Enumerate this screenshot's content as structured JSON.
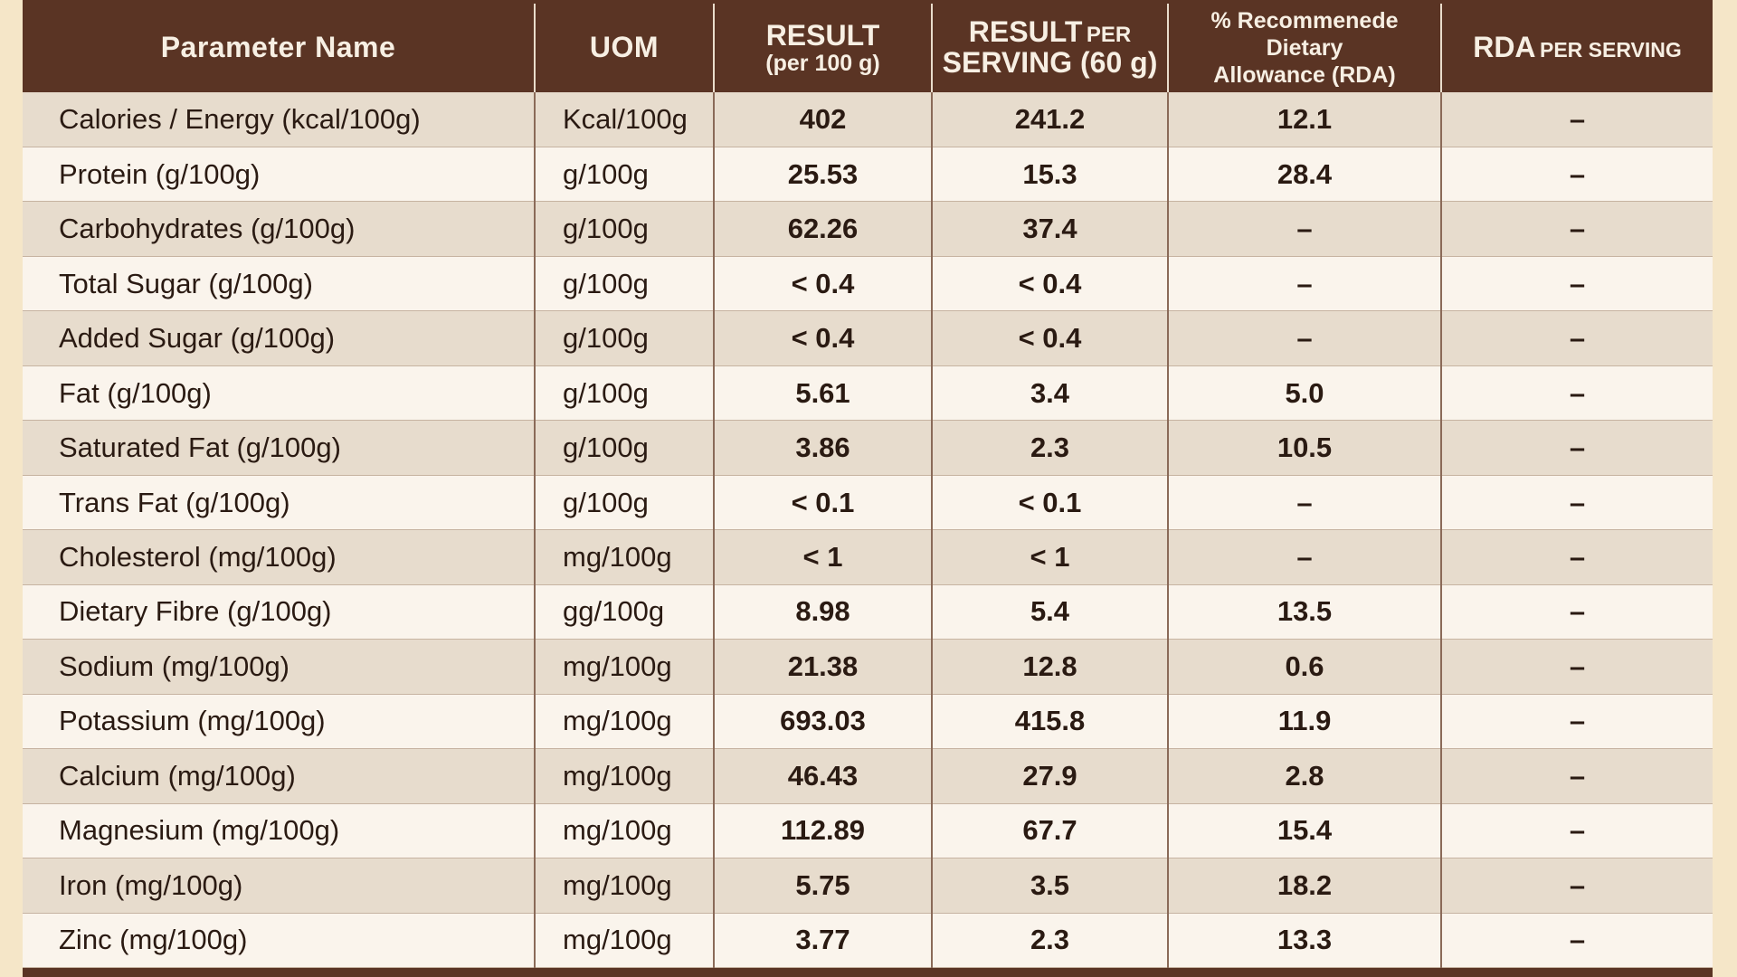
{
  "table": {
    "headers": {
      "parameter_name": "Parameter Name",
      "uom": "UOM",
      "result_title": "RESULT",
      "result_sub": "(per 100 g)",
      "serving_result": "RESULT",
      "serving_per": "PER",
      "serving_line2": "SERVING (60 g)",
      "rda_line1": "% Recommenede Dietary",
      "rda_line2": "Allowance (RDA)",
      "rda_per_main": "RDA",
      "rda_per_caps": "PER SERVING"
    },
    "rows": [
      {
        "name": "Calories / Energy (kcal/100g)",
        "uom": "Kcal/100g",
        "result": "402",
        "serving": "241.2",
        "rda": "12.1",
        "rda_serving": "–"
      },
      {
        "name": "Protein (g/100g)",
        "uom": "g/100g",
        "result": "25.53",
        "serving": "15.3",
        "rda": "28.4",
        "rda_serving": "–"
      },
      {
        "name": "Carbohydrates (g/100g)",
        "uom": "g/100g",
        "result": "62.26",
        "serving": "37.4",
        "rda": "–",
        "rda_serving": "–"
      },
      {
        "name": "Total Sugar (g/100g)",
        "uom": "g/100g",
        "result": "< 0.4",
        "serving": "< 0.4",
        "rda": "–",
        "rda_serving": "–"
      },
      {
        "name": "Added Sugar (g/100g)",
        "uom": "g/100g",
        "result": "< 0.4",
        "serving": "< 0.4",
        "rda": "–",
        "rda_serving": "–"
      },
      {
        "name": "Fat (g/100g)",
        "uom": "g/100g",
        "result": "5.61",
        "serving": "3.4",
        "rda": "5.0",
        "rda_serving": "–"
      },
      {
        "name": "Saturated Fat (g/100g)",
        "uom": "g/100g",
        "result": "3.86",
        "serving": "2.3",
        "rda": "10.5",
        "rda_serving": "–"
      },
      {
        "name": "Trans Fat (g/100g)",
        "uom": "g/100g",
        "result": "< 0.1",
        "serving": "< 0.1",
        "rda": "–",
        "rda_serving": "–"
      },
      {
        "name": "Cholesterol (mg/100g)",
        "uom": "mg/100g",
        "result": "< 1",
        "serving": "< 1",
        "rda": "–",
        "rda_serving": "–"
      },
      {
        "name": "Dietary Fibre (g/100g)",
        "uom": "gg/100g",
        "result": "8.98",
        "serving": "5.4",
        "rda": "13.5",
        "rda_serving": "–"
      },
      {
        "name": "Sodium (mg/100g)",
        "uom": "mg/100g",
        "result": "21.38",
        "serving": "12.8",
        "rda": "0.6",
        "rda_serving": "–"
      },
      {
        "name": "Potassium (mg/100g)",
        "uom": "mg/100g",
        "result": "693.03",
        "serving": "415.8",
        "rda": "11.9",
        "rda_serving": "–"
      },
      {
        "name": "Calcium (mg/100g)",
        "uom": "mg/100g",
        "result": "46.43",
        "serving": "27.9",
        "rda": "2.8",
        "rda_serving": "–"
      },
      {
        "name": "Magnesium (mg/100g)",
        "uom": "mg/100g",
        "result": "112.89",
        "serving": "67.7",
        "rda": "15.4",
        "rda_serving": "–"
      },
      {
        "name": "Iron (mg/100g)",
        "uom": "mg/100g",
        "result": "5.75",
        "serving": "3.5",
        "rda": "18.2",
        "rda_serving": "–"
      },
      {
        "name": "Zinc (mg/100g)",
        "uom": "mg/100g",
        "result": "3.77",
        "serving": "2.3",
        "rda": "13.3",
        "rda_serving": "–"
      }
    ]
  }
}
